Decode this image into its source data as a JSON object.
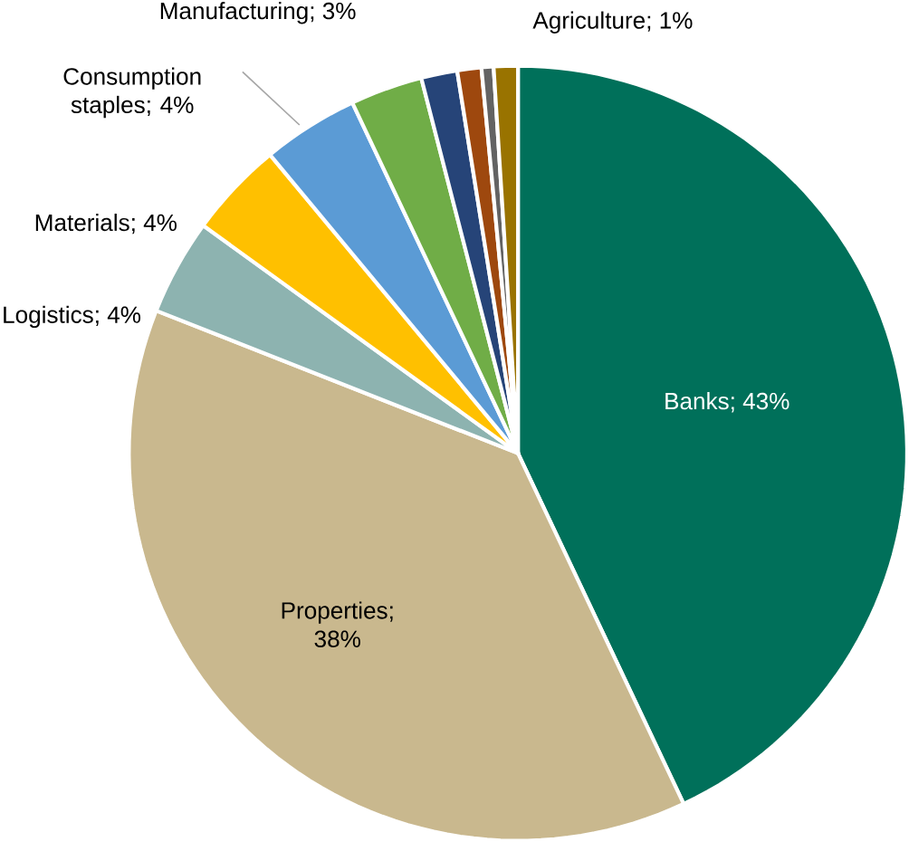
{
  "chart_data": {
    "type": "pie",
    "categories": [
      "Banks",
      "Properties",
      "Logistics",
      "Materials",
      "Consumption staples",
      "Manufacturing",
      null,
      null,
      null,
      "Agriculture"
    ],
    "values": [
      43,
      38,
      4,
      4,
      4,
      3,
      1.5,
      1,
      0.5,
      1
    ],
    "value_labels": [
      "; 43%",
      "; 38%",
      "; 4%",
      "; 4%",
      "; 4%",
      "; 3%",
      null,
      null,
      null,
      "; 1%"
    ],
    "data_labels": true,
    "colors": [
      "#00705a",
      "#c9b88e",
      "#8db3b0",
      "#ffc000",
      "#5b9bd5",
      "#70ad47",
      "#264478",
      "#9e480e",
      "#636363",
      "#997300"
    ]
  }
}
